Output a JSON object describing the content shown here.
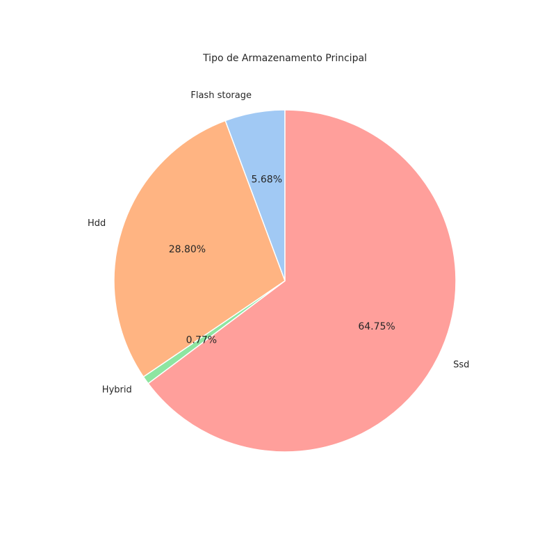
{
  "chart_data": {
    "type": "pie",
    "title": "Tipo de Armazenamento Principal",
    "start_angle_deg": 90,
    "direction": "counterclockwise",
    "slices": [
      {
        "label": "Flash storage",
        "value": 5.68,
        "pct_label": "5.68%",
        "color": "#a1c9f4"
      },
      {
        "label": "Hdd",
        "value": 28.8,
        "pct_label": "28.80%",
        "color": "#ffb482"
      },
      {
        "label": "Hybrid",
        "value": 0.77,
        "pct_label": "0.77%",
        "color": "#8de5a1"
      },
      {
        "label": "Ssd",
        "value": 64.75,
        "pct_label": "64.75%",
        "color": "#ff9f9b"
      }
    ]
  }
}
